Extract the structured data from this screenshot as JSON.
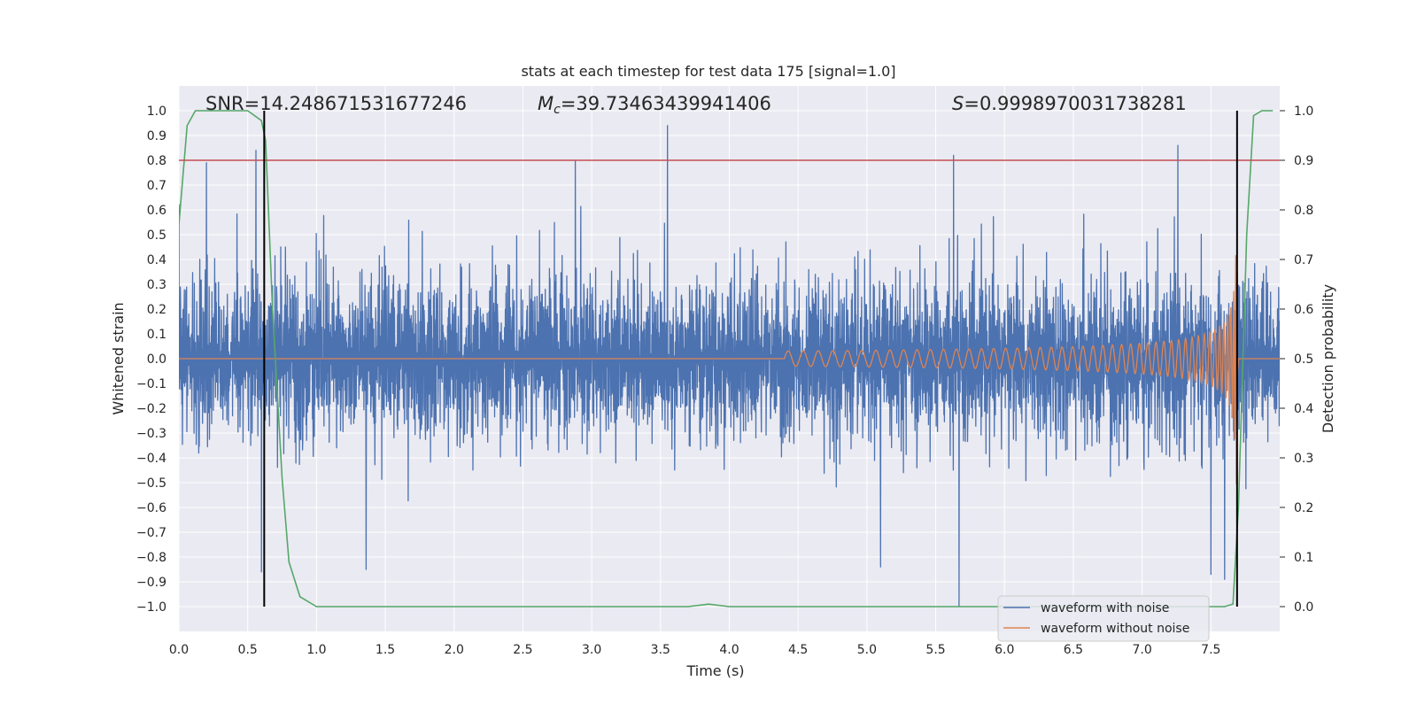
{
  "chart_data": {
    "type": "line",
    "title": "stats at each timestep for test data 175 [signal=1.0]",
    "xlabel": "Time (s)",
    "ylabel": "Whitened strain",
    "y2label": "Detection probability",
    "xlim": [
      0.0,
      8.0
    ],
    "ylim": [
      -1.1,
      1.1
    ],
    "y2lim": [
      -0.05,
      1.05
    ],
    "xticks": [
      0.0,
      0.5,
      1.0,
      1.5,
      2.0,
      2.5,
      3.0,
      3.5,
      4.0,
      4.5,
      5.0,
      5.5,
      6.0,
      6.5,
      7.0,
      7.5
    ],
    "yticks": [
      -1.0,
      -0.9,
      -0.8,
      -0.7,
      -0.6,
      -0.5,
      -0.4,
      -0.3,
      -0.2,
      -0.1,
      0.0,
      0.1,
      0.2,
      0.3,
      0.4,
      0.5,
      0.6,
      0.7,
      0.8,
      0.9,
      1.0
    ],
    "y2ticks": [
      0.0,
      0.1,
      0.2,
      0.3,
      0.4,
      0.5,
      0.6,
      0.7,
      0.8,
      0.9,
      1.0
    ],
    "grid": true,
    "legend_position": "lower-right",
    "annotations": {
      "snr": "SNR=14.248671531677246",
      "mc_symbol": "M",
      "mc_sub": "c",
      "mc_value": "=39.73463439941406",
      "s_symbol": "S",
      "s_value": "=0.9998970031738281"
    },
    "series": [
      {
        "name": "waveform with noise",
        "color": "#4c72b0",
        "kind": "noise",
        "time_range": [
          0.0,
          8.0
        ],
        "typical_amplitude": 0.38,
        "peak_spikes": [
          {
            "x": 0.2,
            "y": 0.79
          },
          {
            "x": 0.56,
            "y": 0.84
          },
          {
            "x": 0.6,
            "y": -0.86
          },
          {
            "x": 1.36,
            "y": -0.85
          },
          {
            "x": 2.88,
            "y": 0.8
          },
          {
            "x": 3.55,
            "y": 0.94
          },
          {
            "x": 5.1,
            "y": -0.84
          },
          {
            "x": 5.63,
            "y": 0.82
          },
          {
            "x": 5.67,
            "y": -1.0
          },
          {
            "x": 7.26,
            "y": 0.86
          },
          {
            "x": 7.5,
            "y": -0.87
          },
          {
            "x": 7.6,
            "y": -0.89
          }
        ]
      },
      {
        "name": "waveform without noise",
        "color": "#dd8452",
        "kind": "chirp",
        "onset_time": 4.4,
        "merger_time": 7.69,
        "peak_amplitude": 0.72
      },
      {
        "name": "Detection probability",
        "color": "#55a868",
        "axis": "right",
        "x": [
          0.0,
          0.06,
          0.12,
          0.2,
          0.3,
          0.4,
          0.5,
          0.55,
          0.6,
          0.63,
          0.68,
          0.75,
          0.8,
          0.88,
          1.0,
          1.5,
          2.0,
          3.0,
          3.7,
          3.85,
          4.0,
          5.0,
          6.0,
          7.0,
          7.6,
          7.66,
          7.7,
          7.76,
          7.81,
          7.87,
          7.95
        ],
        "y": [
          0.77,
          0.97,
          1.0,
          1.0,
          1.0,
          1.0,
          1.0,
          0.99,
          0.98,
          0.94,
          0.6,
          0.26,
          0.09,
          0.02,
          0.0,
          0.0,
          0.0,
          0.0,
          0.0,
          0.005,
          0.0,
          0.0,
          0.0,
          0.0,
          0.0,
          0.005,
          0.2,
          0.75,
          0.99,
          1.0,
          1.0
        ]
      }
    ],
    "threshold_line": {
      "axis": "right",
      "y": 0.9,
      "color": "#c44e52"
    },
    "vertical_lines": [
      {
        "x": 0.62,
        "y_from": -1.0,
        "y_to": 1.0,
        "color": "#000000"
      },
      {
        "x": 7.69,
        "y_from": -1.0,
        "y_to": 1.0,
        "color": "#000000"
      }
    ]
  }
}
